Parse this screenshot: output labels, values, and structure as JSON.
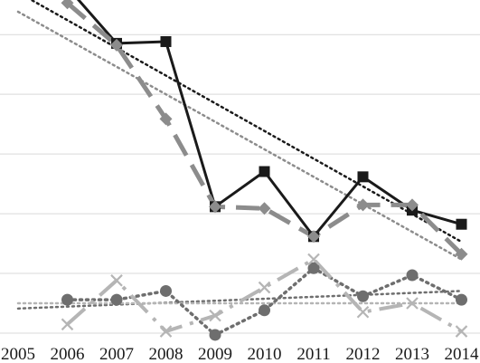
{
  "chart_data": {
    "type": "line",
    "title": "",
    "xlabel": "",
    "ylabel": "",
    "x": [
      "2005",
      "2006",
      "2007",
      "2008",
      "2009",
      "2010",
      "2011",
      "2012",
      "2013",
      "2014"
    ],
    "ylim": [
      0,
      100
    ],
    "grid": true,
    "legend": "none",
    "series": [
      {
        "style": "solid-square",
        "color": "#1a1a1a",
        "values": [
          null,
          98.5,
          82.5,
          83.0,
          36.0,
          46.0,
          27.5,
          44.5,
          35.0,
          31.0
        ],
        "trendline": {
          "color": "#1a1a1a",
          "from": 97.0,
          "to": 26.0
        }
      },
      {
        "style": "dashed-diamond",
        "color": "#8c8c8c",
        "values": [
          null,
          94.0,
          82.0,
          61.0,
          36.0,
          35.5,
          27.5,
          36.5,
          36.5,
          22.5
        ],
        "trendline": {
          "color": "#8c8c8c",
          "from": 91.5,
          "to": 21.0
        }
      },
      {
        "style": "dotted-circle",
        "color": "#6e6e6e",
        "values": [
          null,
          9.5,
          9.5,
          12.0,
          -0.5,
          6.5,
          18.5,
          10.5,
          16.5,
          9.5
        ],
        "trendline": {
          "color": "#6e6e6e",
          "from": 7.0,
          "to": 12.0
        }
      },
      {
        "style": "dashdot-x",
        "color": "#b5b5b5",
        "values": [
          null,
          2.5,
          15.0,
          0.5,
          5.0,
          13.0,
          21.0,
          6.0,
          8.5,
          0.5
        ],
        "trendline": {
          "color": "#b5b5b5",
          "from": 8.5,
          "to": 8.5
        }
      }
    ]
  }
}
